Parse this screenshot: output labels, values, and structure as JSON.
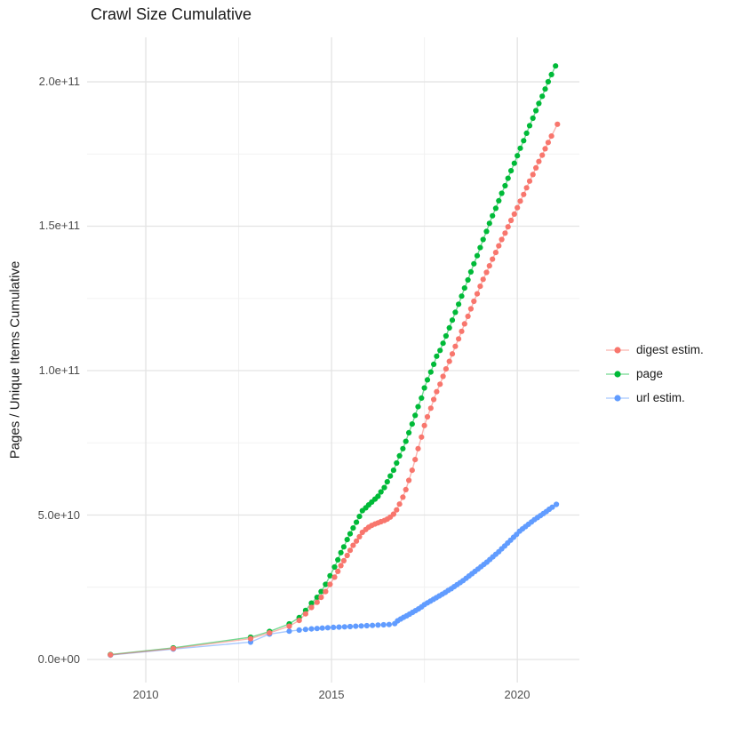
{
  "title": "Crawl Size Cumulative",
  "y_axis": {
    "title": "Pages / Unique Items Cumulative",
    "labels": [
      "2.0e+11",
      "1.5e+11",
      "1.0e+11",
      "5.0e+10",
      "0.0e+00"
    ]
  },
  "x_axis": {
    "labels": [
      "2010",
      "2015",
      "2020"
    ]
  },
  "legend": {
    "items": [
      {
        "label": "digest estim.",
        "color": "#F8766D"
      },
      {
        "label": "page",
        "color": "#00BA38"
      },
      {
        "label": "url estim.",
        "color": "#619CFF"
      }
    ]
  },
  "colors": {
    "background": "#FFFFFF",
    "grid_major": "#E3E3E3",
    "grid_minor": "#F0F0F0",
    "axis_text": "#4D4D4D",
    "title_text": "#1A1A1A"
  },
  "chart_data": {
    "type": "line",
    "style": "line+points",
    "title": "Crawl Size Cumulative",
    "xlabel": "",
    "ylabel": "Pages / Unique Items Cumulative",
    "grid": true,
    "legend_position": "right",
    "y_unit_note": "y values in billions (1e9) of pages / unique items",
    "xlim": [
      2008.42,
      2021.67
    ],
    "ylim_billions": [
      -8,
      215.4
    ],
    "x_major_gridlines": [
      2010,
      2015,
      2020
    ],
    "x_minor_gridlines": [
      2012.5,
      2017.5
    ],
    "y_major_gridlines_billions": [
      0,
      50,
      100,
      150,
      200
    ],
    "y_minor_gridlines_billions": [
      25,
      75,
      125,
      175
    ],
    "y_tick_labels": [
      "0.0e+00",
      "5.0e+10",
      "1.0e+11",
      "1.5e+11",
      "2.0e+11"
    ],
    "x_tick_labels": [
      "2010",
      "2015",
      "2020"
    ],
    "draw_order": [
      "url estim.",
      "page",
      "digest estim."
    ],
    "series": [
      {
        "name": "digest estim.",
        "color": "#F8766D",
        "points": [
          [
            2009.05,
            1.6
          ],
          [
            2010.74,
            3.8
          ],
          [
            2012.82,
            7.2
          ],
          [
            2013.33,
            9.2
          ],
          [
            2013.86,
            11.5
          ],
          [
            2014.13,
            13.5
          ],
          [
            2014.3,
            15.8
          ],
          [
            2014.46,
            18.0
          ],
          [
            2014.61,
            19.8
          ],
          [
            2014.72,
            21.5
          ],
          [
            2014.84,
            23.5
          ],
          [
            2014.96,
            26.0
          ],
          [
            2015.08,
            28.5
          ],
          [
            2015.17,
            30.5
          ],
          [
            2015.25,
            32.5
          ],
          [
            2015.33,
            34.2
          ],
          [
            2015.42,
            36.0
          ],
          [
            2015.5,
            37.8
          ],
          [
            2015.58,
            39.5
          ],
          [
            2015.67,
            41.0
          ],
          [
            2015.75,
            42.5
          ],
          [
            2015.83,
            44.0
          ],
          [
            2015.92,
            45.0
          ],
          [
            2016.0,
            45.8
          ],
          [
            2016.08,
            46.4
          ],
          [
            2016.17,
            46.9
          ],
          [
            2016.25,
            47.3
          ],
          [
            2016.33,
            47.7
          ],
          [
            2016.42,
            48.1
          ],
          [
            2016.5,
            48.6
          ],
          [
            2016.58,
            49.3
          ],
          [
            2016.67,
            50.3
          ],
          [
            2016.75,
            51.8
          ],
          [
            2016.83,
            53.8
          ],
          [
            2016.92,
            56.2
          ],
          [
            2017.0,
            58.8
          ],
          [
            2017.08,
            62.0
          ],
          [
            2017.17,
            65.5
          ],
          [
            2017.25,
            69.2
          ],
          [
            2017.33,
            73.0
          ],
          [
            2017.42,
            77.0
          ],
          [
            2017.5,
            81.0
          ],
          [
            2017.58,
            84.0
          ],
          [
            2017.67,
            87.0
          ],
          [
            2017.75,
            90.0
          ],
          [
            2017.83,
            92.7
          ],
          [
            2017.92,
            95.3
          ],
          [
            2018.0,
            98.0
          ],
          [
            2018.08,
            100.6
          ],
          [
            2018.17,
            103.2
          ],
          [
            2018.25,
            105.8
          ],
          [
            2018.33,
            108.4
          ],
          [
            2018.42,
            111.0
          ],
          [
            2018.5,
            113.6
          ],
          [
            2018.58,
            116.2
          ],
          [
            2018.67,
            118.8
          ],
          [
            2018.75,
            121.4
          ],
          [
            2018.83,
            124.0
          ],
          [
            2018.92,
            126.6
          ],
          [
            2019.0,
            129.2
          ],
          [
            2019.08,
            131.6
          ],
          [
            2019.17,
            134.0
          ],
          [
            2019.25,
            136.3
          ],
          [
            2019.33,
            138.6
          ],
          [
            2019.42,
            140.9
          ],
          [
            2019.5,
            143.2
          ],
          [
            2019.58,
            145.4
          ],
          [
            2019.67,
            147.6
          ],
          [
            2019.75,
            149.8
          ],
          [
            2019.83,
            152.0
          ],
          [
            2019.92,
            154.2
          ],
          [
            2020.0,
            156.4
          ],
          [
            2020.08,
            158.7
          ],
          [
            2020.17,
            161.0
          ],
          [
            2020.25,
            163.3
          ],
          [
            2020.33,
            165.6
          ],
          [
            2020.42,
            167.9
          ],
          [
            2020.5,
            170.2
          ],
          [
            2020.58,
            172.4
          ],
          [
            2020.67,
            174.6
          ],
          [
            2020.75,
            176.8
          ],
          [
            2020.83,
            179.0
          ],
          [
            2020.92,
            181.2
          ],
          [
            2021.08,
            185.3
          ]
        ]
      },
      {
        "name": "page",
        "color": "#00BA38",
        "points": [
          [
            2009.05,
            1.7
          ],
          [
            2010.74,
            4.0
          ],
          [
            2012.82,
            7.7
          ],
          [
            2013.33,
            9.7
          ],
          [
            2013.86,
            12.3
          ],
          [
            2014.13,
            14.5
          ],
          [
            2014.3,
            17.0
          ],
          [
            2014.46,
            19.5
          ],
          [
            2014.61,
            21.5
          ],
          [
            2014.72,
            23.5
          ],
          [
            2014.84,
            26.0
          ],
          [
            2014.96,
            29.0
          ],
          [
            2015.08,
            32.0
          ],
          [
            2015.17,
            34.5
          ],
          [
            2015.25,
            37.0
          ],
          [
            2015.33,
            39.0
          ],
          [
            2015.42,
            41.5
          ],
          [
            2015.5,
            43.5
          ],
          [
            2015.58,
            45.5
          ],
          [
            2015.67,
            47.5
          ],
          [
            2015.75,
            49.5
          ],
          [
            2015.83,
            51.5
          ],
          [
            2015.92,
            52.5
          ],
          [
            2016.0,
            53.5
          ],
          [
            2016.08,
            54.5
          ],
          [
            2016.17,
            55.5
          ],
          [
            2016.25,
            56.5
          ],
          [
            2016.33,
            58.0
          ],
          [
            2016.42,
            59.5
          ],
          [
            2016.5,
            61.5
          ],
          [
            2016.58,
            63.5
          ],
          [
            2016.67,
            65.5
          ],
          [
            2016.75,
            68.0
          ],
          [
            2016.83,
            70.5
          ],
          [
            2016.92,
            73.0
          ],
          [
            2017.0,
            75.5
          ],
          [
            2017.08,
            78.5
          ],
          [
            2017.17,
            81.5
          ],
          [
            2017.25,
            84.5
          ],
          [
            2017.33,
            87.5
          ],
          [
            2017.42,
            90.5
          ],
          [
            2017.5,
            94.0
          ],
          [
            2017.58,
            96.8
          ],
          [
            2017.67,
            99.5
          ],
          [
            2017.75,
            102.2
          ],
          [
            2017.83,
            105.0
          ],
          [
            2017.92,
            107.0
          ],
          [
            2018.0,
            109.5
          ],
          [
            2018.08,
            112.0
          ],
          [
            2018.17,
            114.8
          ],
          [
            2018.25,
            117.5
          ],
          [
            2018.33,
            120.2
          ],
          [
            2018.42,
            123.0
          ],
          [
            2018.5,
            125.8
          ],
          [
            2018.58,
            128.6
          ],
          [
            2018.67,
            131.4
          ],
          [
            2018.75,
            134.2
          ],
          [
            2018.83,
            137.0
          ],
          [
            2018.92,
            139.8
          ],
          [
            2019.0,
            142.6
          ],
          [
            2019.08,
            145.4
          ],
          [
            2019.17,
            148.2
          ],
          [
            2019.25,
            151.0
          ],
          [
            2019.33,
            153.6
          ],
          [
            2019.42,
            156.2
          ],
          [
            2019.5,
            158.8
          ],
          [
            2019.58,
            161.4
          ],
          [
            2019.67,
            164.0
          ],
          [
            2019.75,
            166.6
          ],
          [
            2019.83,
            169.2
          ],
          [
            2019.92,
            171.8
          ],
          [
            2020.0,
            174.4
          ],
          [
            2020.08,
            177.0
          ],
          [
            2020.17,
            179.6
          ],
          [
            2020.25,
            182.2
          ],
          [
            2020.33,
            184.8
          ],
          [
            2020.42,
            187.4
          ],
          [
            2020.5,
            190.0
          ],
          [
            2020.58,
            192.5
          ],
          [
            2020.67,
            195.0
          ],
          [
            2020.75,
            197.5
          ],
          [
            2020.83,
            200.0
          ],
          [
            2020.92,
            202.5
          ],
          [
            2021.03,
            205.5
          ]
        ]
      },
      {
        "name": "url estim.",
        "color": "#619CFF",
        "points": [
          [
            2009.05,
            1.5
          ],
          [
            2010.74,
            3.6
          ],
          [
            2012.82,
            6.0
          ],
          [
            2013.33,
            8.8
          ],
          [
            2013.86,
            9.8
          ],
          [
            2014.13,
            10.2
          ],
          [
            2014.3,
            10.4
          ],
          [
            2014.46,
            10.6
          ],
          [
            2014.61,
            10.7
          ],
          [
            2014.75,
            10.85
          ],
          [
            2014.9,
            11.0
          ],
          [
            2015.05,
            11.1
          ],
          [
            2015.2,
            11.2
          ],
          [
            2015.35,
            11.3
          ],
          [
            2015.5,
            11.4
          ],
          [
            2015.65,
            11.5
          ],
          [
            2015.8,
            11.6
          ],
          [
            2015.95,
            11.7
          ],
          [
            2016.1,
            11.8
          ],
          [
            2016.25,
            11.9
          ],
          [
            2016.4,
            12.0
          ],
          [
            2016.55,
            12.1
          ],
          [
            2016.7,
            12.4
          ],
          [
            2016.78,
            13.4
          ],
          [
            2016.86,
            14.0
          ],
          [
            2016.94,
            14.6
          ],
          [
            2017.02,
            15.1
          ],
          [
            2017.1,
            15.7
          ],
          [
            2017.18,
            16.3
          ],
          [
            2017.26,
            16.9
          ],
          [
            2017.34,
            17.5
          ],
          [
            2017.42,
            18.2
          ],
          [
            2017.5,
            19.0
          ],
          [
            2017.58,
            19.6
          ],
          [
            2017.66,
            20.2
          ],
          [
            2017.74,
            20.8
          ],
          [
            2017.82,
            21.4
          ],
          [
            2017.9,
            22.0
          ],
          [
            2017.98,
            22.6
          ],
          [
            2018.06,
            23.2
          ],
          [
            2018.14,
            23.9
          ],
          [
            2018.22,
            24.5
          ],
          [
            2018.3,
            25.2
          ],
          [
            2018.38,
            25.9
          ],
          [
            2018.46,
            26.6
          ],
          [
            2018.54,
            27.3
          ],
          [
            2018.62,
            28.1
          ],
          [
            2018.7,
            28.9
          ],
          [
            2018.78,
            29.7
          ],
          [
            2018.86,
            30.5
          ],
          [
            2018.94,
            31.3
          ],
          [
            2019.02,
            32.1
          ],
          [
            2019.1,
            32.9
          ],
          [
            2019.18,
            33.7
          ],
          [
            2019.26,
            34.6
          ],
          [
            2019.34,
            35.5
          ],
          [
            2019.42,
            36.4
          ],
          [
            2019.5,
            37.3
          ],
          [
            2019.58,
            38.3
          ],
          [
            2019.66,
            39.3
          ],
          [
            2019.74,
            40.3
          ],
          [
            2019.82,
            41.3
          ],
          [
            2019.9,
            42.3
          ],
          [
            2019.98,
            43.3
          ],
          [
            2020.06,
            44.4
          ],
          [
            2020.14,
            45.2
          ],
          [
            2020.22,
            46.0
          ],
          [
            2020.3,
            46.8
          ],
          [
            2020.38,
            47.6
          ],
          [
            2020.46,
            48.4
          ],
          [
            2020.54,
            49.1
          ],
          [
            2020.62,
            49.8
          ],
          [
            2020.7,
            50.5
          ],
          [
            2020.78,
            51.2
          ],
          [
            2020.86,
            52.0
          ],
          [
            2020.94,
            52.7
          ],
          [
            2021.05,
            53.7
          ]
        ]
      }
    ]
  }
}
